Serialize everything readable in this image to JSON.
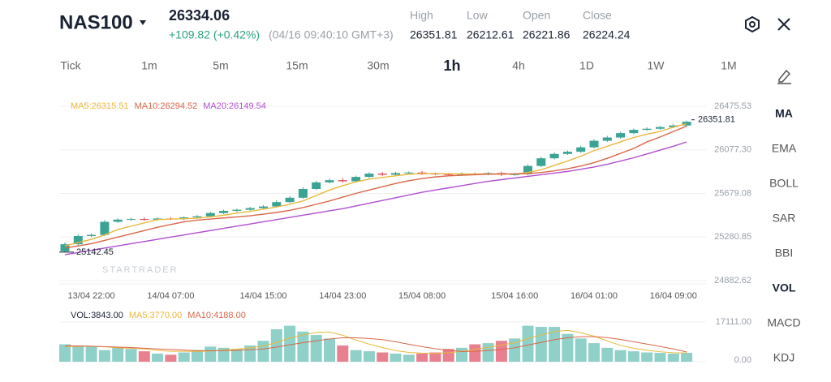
{
  "header": {
    "symbol": "NAS100",
    "price": "26334.06",
    "change": "+109.82 (+0.42%)",
    "time": "(04/16 09:40:10 GMT+3)",
    "stats": [
      {
        "label": "High",
        "value": "26351.81"
      },
      {
        "label": "Low",
        "value": "26212.61"
      },
      {
        "label": "Open",
        "value": "26221.86"
      },
      {
        "label": "Close",
        "value": "26224.24"
      }
    ]
  },
  "timeframes": [
    "Tick",
    "1m",
    "5m",
    "15m",
    "30m",
    "1h",
    "4h",
    "1D",
    "1W",
    "1M"
  ],
  "indicators": [
    "MA",
    "EMA",
    "BOLL",
    "SAR",
    "BBI",
    "VOL",
    "MACD",
    "KDJ"
  ],
  "chart_data": {
    "type": "candlestick",
    "categories": [
      null,
      null,
      "13/04 22:00",
      null,
      null,
      null,
      null,
      null,
      "14/04 07:00",
      null,
      null,
      null,
      null,
      null,
      null,
      "14/04 15:00",
      null,
      null,
      null,
      null,
      null,
      "14/04 23:00",
      null,
      null,
      null,
      null,
      null,
      "15/04 08:00",
      null,
      null,
      null,
      null,
      null,
      null,
      "15/04 16:00",
      null,
      null,
      null,
      null,
      null,
      "16/04 01:00",
      null,
      null,
      null,
      null,
      null,
      "16/04 09:00",
      null
    ],
    "open": [
      25150,
      25215,
      25290,
      25300,
      25420,
      25440,
      25445,
      25440,
      25450,
      25445,
      25460,
      25470,
      25500,
      25520,
      25530,
      25545,
      25560,
      25600,
      25640,
      25720,
      25780,
      25800,
      25790,
      25830,
      25860,
      25850,
      25865,
      25870,
      25860,
      25855,
      25850,
      25860,
      25855,
      25865,
      25850,
      25855,
      25930,
      26000,
      26040,
      26060,
      26100,
      26160,
      26190,
      26230,
      26260,
      26270,
      26285,
      26300
    ],
    "high": [
      25230,
      25305,
      25315,
      25435,
      25452,
      25458,
      25462,
      25460,
      25462,
      25470,
      25482,
      25512,
      25532,
      25540,
      25556,
      25572,
      25615,
      25655,
      25735,
      25795,
      25815,
      25820,
      25842,
      25872,
      25875,
      25876,
      25880,
      25882,
      25870,
      25866,
      25872,
      25870,
      25875,
      25878,
      25866,
      25945,
      26015,
      26055,
      26072,
      26115,
      26175,
      26205,
      26242,
      26272,
      26282,
      26296,
      26312,
      26345
    ],
    "low": [
      25142.45,
      25203,
      25280,
      25290,
      25410,
      25430,
      25430,
      25430,
      25435,
      25435,
      25450,
      25460,
      25490,
      25510,
      25520,
      25535,
      25550,
      25590,
      25630,
      25710,
      25770,
      25778,
      25780,
      25820,
      25840,
      25840,
      25855,
      25848,
      25845,
      25840,
      25840,
      25845,
      25845,
      25838,
      25840,
      25845,
      25920,
      25990,
      26030,
      26050,
      26090,
      26150,
      26180,
      26220,
      26250,
      26260,
      26275,
      26290
    ],
    "close": [
      25215,
      25290,
      25300,
      25420,
      25440,
      25445,
      25440,
      25450,
      25445,
      25460,
      25470,
      25500,
      25520,
      25530,
      25545,
      25560,
      25600,
      25640,
      25720,
      25780,
      25800,
      25790,
      25830,
      25860,
      25850,
      25865,
      25870,
      25860,
      25855,
      25850,
      25860,
      25855,
      25865,
      25850,
      25855,
      25930,
      26000,
      26040,
      26060,
      26100,
      26160,
      26190,
      26230,
      26260,
      26270,
      26285,
      26300,
      26334.06
    ],
    "up_color": "#3aa394",
    "down_color": "#e0414f",
    "ma": [
      {
        "name": "MA5:26315.51",
        "color": "#eab83c",
        "values": [
          25200,
          25230,
          25260,
          25300,
          25350,
          25380,
          25410,
          25440,
          25445,
          25448,
          25453,
          25465,
          25480,
          25500,
          25515,
          25535,
          25555,
          25580,
          25610,
          25660,
          25710,
          25750,
          25785,
          25810,
          25825,
          25840,
          25855,
          25860,
          25860,
          25858,
          25857,
          25856,
          25857,
          25856,
          25857,
          25870,
          25895,
          25935,
          25975,
          26020,
          26070,
          26110,
          26150,
          26190,
          26220,
          26245,
          26285,
          26315.51
        ]
      },
      {
        "name": "MA10:26294.52",
        "color": "#d9674a",
        "values": [
          25180,
          25200,
          25220,
          25250,
          25280,
          25310,
          25340,
          25370,
          25395,
          25420,
          25435,
          25445,
          25455,
          25465,
          25475,
          25490,
          25505,
          25525,
          25550,
          25580,
          25610,
          25645,
          25680,
          25710,
          25740,
          25770,
          25795,
          25815,
          25830,
          25840,
          25845,
          25850,
          25855,
          25857,
          25857,
          25860,
          25870,
          25885,
          25905,
          25930,
          25960,
          26000,
          26045,
          26090,
          26150,
          26195,
          26245,
          26294.52
        ]
      },
      {
        "name": "MA20:26149.54",
        "color": "#b04fcf",
        "values": [
          25120,
          25140,
          25160,
          25180,
          25200,
          25220,
          25240,
          25260,
          25280,
          25300,
          25320,
          25340,
          25360,
          25380,
          25400,
          25420,
          25440,
          25460,
          25480,
          25500,
          25520,
          25540,
          25565,
          25590,
          25615,
          25640,
          25665,
          25690,
          25710,
          25730,
          25750,
          25770,
          25790,
          25805,
          25820,
          25835,
          25850,
          25865,
          25880,
          25900,
          25920,
          25945,
          25975,
          26005,
          26040,
          26075,
          26110,
          26149.54
        ]
      }
    ],
    "ylim": [
      24882.62,
      26475.53
    ],
    "yticks": [
      {
        "value": 24882.62,
        "label": "24882.62"
      },
      25280.85,
      {
        "value": 25679.08,
        "label": "25679.08"
      },
      {
        "value": 26077.3,
        "label": "26077.30"
      },
      26475.53
    ],
    "last_price": 26351.81,
    "low_label": 25142.45,
    "watermark": "STARTRADER",
    "grid": true,
    "volume": {
      "label": "VOL:3843.00",
      "up_color": "#8fd0c8",
      "down_color": "#e8808f",
      "values": [
        7500,
        7000,
        6500,
        5000,
        6000,
        5500,
        4500,
        3500,
        3000,
        4000,
        5000,
        6500,
        6000,
        5500,
        7000,
        9000,
        14000,
        15500,
        13000,
        11500,
        10000,
        7000,
        5000,
        4500,
        4000,
        3500,
        3000,
        3500,
        4000,
        5500,
        6000,
        7500,
        8000,
        9000,
        10000,
        15500,
        15000,
        15000,
        12000,
        10000,
        8000,
        6000,
        5000,
        4500,
        4000,
        3800,
        3500,
        3843
      ],
      "ma": [
        {
          "name": "MA5:3770.00",
          "color": "#eab83c",
          "values": [
            6500,
            6600,
            6700,
            6400,
            6000,
            5800,
            5500,
            4900,
            4500,
            4500,
            4400,
            4600,
            5000,
            5400,
            6000,
            6800,
            8300,
            10200,
            11500,
            12600,
            12800,
            11400,
            9300,
            7600,
            6100,
            4800,
            4000,
            3700,
            3600,
            3900,
            4400,
            5300,
            6200,
            7200,
            8100,
            10000,
            11500,
            13000,
            13500,
            12500,
            11000,
            9000,
            7000,
            5800,
            4900,
            4300,
            3900,
            3770
          ]
        },
        {
          "name": "MA10:4188.00",
          "color": "#d9674a",
          "values": [
            6800,
            6800,
            6700,
            6500,
            6300,
            6100,
            5800,
            5500,
            5300,
            5000,
            4800,
            4700,
            4800,
            4900,
            5100,
            5500,
            6300,
            7300,
            8200,
            9000,
            9800,
            10300,
            10300,
            10000,
            9500,
            8600,
            7500,
            6500,
            5600,
            5000,
            4400,
            4500,
            4800,
            5300,
            6000,
            7200,
            8300,
            9500,
            10300,
            10800,
            10800,
            10400,
            9600,
            8600,
            7600,
            6600,
            5500,
            4188
          ]
        }
      ],
      "ylim": [
        0,
        17111
      ],
      "yticks": [
        {
          "value": 0,
          "label": "0.00"
        },
        {
          "value": 17111,
          "label": "17111.00"
        }
      ]
    }
  }
}
